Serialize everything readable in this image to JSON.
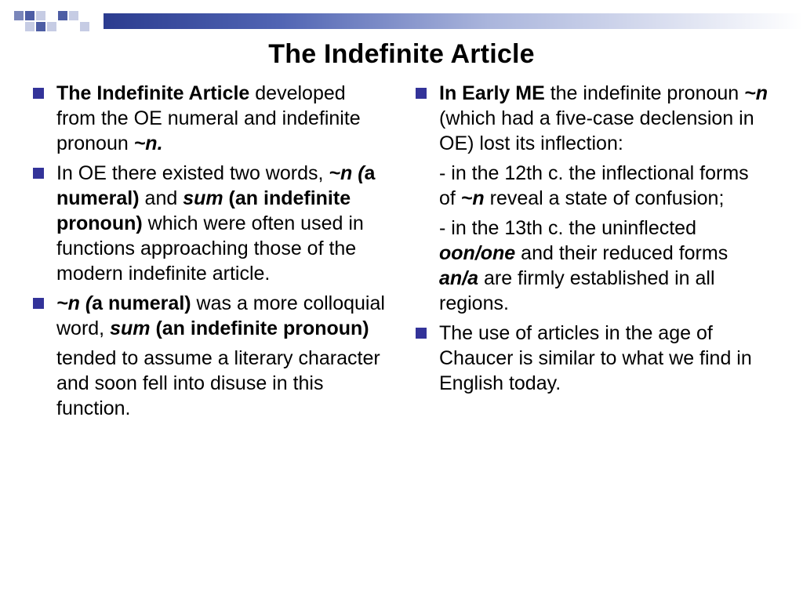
{
  "accent": "#333399",
  "deco": {
    "gradient_from": "#2b3c8f",
    "gradient_to": "#ffffff",
    "squares": [
      [
        "#7a86ba",
        "#4d5da4",
        "#c6cce4",
        "#ffffff",
        "#4d5da4",
        "#c6cce4",
        "#ffffff",
        "#ffffff"
      ],
      [
        "#ffffff",
        "#c6cce4",
        "#4d5da4",
        "#c6cce4",
        "#ffffff",
        "#ffffff",
        "#c6cce4",
        "#ffffff"
      ]
    ]
  },
  "title": "The Indefinite Article",
  "left": {
    "item1_prefix": "The Indefinite Article",
    "item1_rest": " developed from the OE numeral and indefinite pronoun ",
    "item1_word": "~n.",
    "item2_a": "In OE there existed two words, ",
    "item2_b": "~n (",
    "item2_c": "a numeral)",
    "item2_d": " and ",
    "item2_e": "sum",
    "item2_f": "  (an indefinite pronoun)",
    "item2_g": " which were often used in functions approaching those of the modern indefinite article.",
    "item3_a": "~n (",
    "item3_b": "a numeral)",
    "item3_c": " was a more colloquial word, ",
    "item3_d": "sum",
    "item3_e": " (an indefinite pronoun)",
    "item3_sub": "tended to assume a literary character and soon fell into disuse in this function."
  },
  "right": {
    "item1_a": "In Early ME",
    "item1_b": " the indefinite pronoun ",
    "item1_c": "~n",
    "item1_d": " (which had a five-case declension in OE) lost its inflection:",
    "sub1_a": "- in the 12th c. the inflectional forms of ",
    "sub1_b": "~n",
    "sub1_c": " reveal a state of confusion;",
    "sub2_a": "- in the 13th c. the uninflected ",
    "sub2_b": "oon/one",
    "sub2_c": " and their reduced forms ",
    "sub2_d": "an/a",
    "sub2_e": " are firmly established in all regions.",
    "item2": "The use of articles in the age of Chaucer is similar to what we find in English today."
  },
  "typography": {
    "title_fontsize": 34,
    "body_fontsize": 25,
    "font_family": "Arial"
  }
}
